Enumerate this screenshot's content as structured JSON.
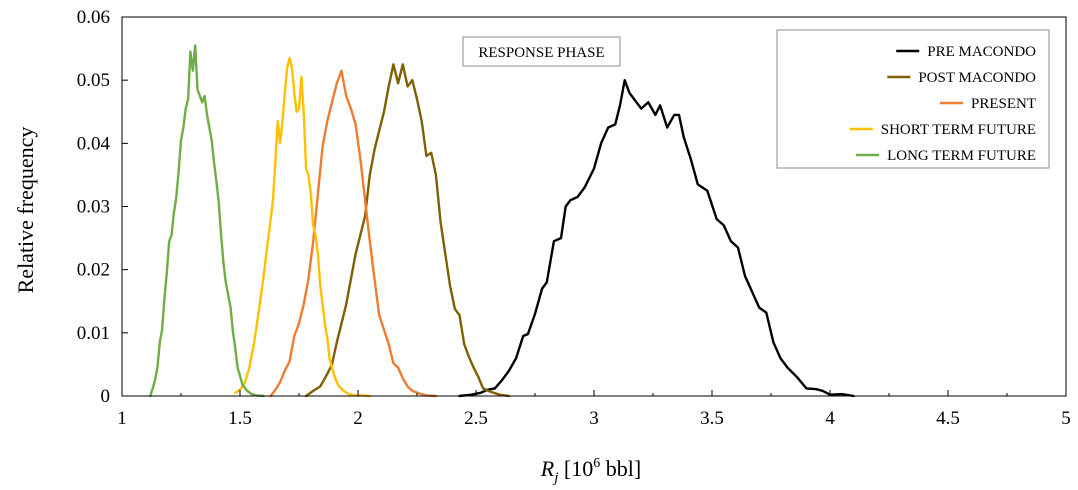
{
  "chart_data": {
    "type": "line",
    "annotation": "RESPONSE PHASE",
    "ylabel": "Relative frequency",
    "xlabel": {
      "base": "R",
      "sub": "j",
      "pre": " [10",
      "sup": "6",
      "post": " bbl]"
    },
    "xlim": [
      1,
      5
    ],
    "ylim": [
      0,
      0.06
    ],
    "xticks": [
      1,
      1.5,
      2,
      2.5,
      3,
      3.5,
      4,
      4.5,
      5
    ],
    "xtick_labels": [
      "1",
      "1.5",
      "2",
      "2.5",
      "3",
      "3.5",
      "4",
      "4.5",
      "5"
    ],
    "yticks": [
      0,
      0.01,
      0.02,
      0.03,
      0.04,
      0.05,
      0.06
    ],
    "ytick_labels": [
      "0",
      "0.01",
      "0.02",
      "0.03",
      "0.04",
      "0.05",
      "0.06"
    ],
    "grid": false,
    "legend_position": "top-right",
    "series": [
      {
        "name": "PRE MACONDO",
        "color": "#000000",
        "x": [
          2.43,
          2.48,
          2.52,
          2.55,
          2.58,
          2.61,
          2.64,
          2.67,
          2.7,
          2.72,
          2.75,
          2.78,
          2.8,
          2.83,
          2.86,
          2.88,
          2.9,
          2.93,
          2.96,
          3.0,
          3.03,
          3.06,
          3.09,
          3.11,
          3.13,
          3.15,
          3.17,
          3.2,
          3.23,
          3.26,
          3.28,
          3.31,
          3.34,
          3.36,
          3.38,
          3.41,
          3.44,
          3.48,
          3.52,
          3.55,
          3.58,
          3.61,
          3.64,
          3.67,
          3.7,
          3.73,
          3.76,
          3.79,
          3.82,
          3.86,
          3.9,
          3.94,
          3.97,
          4.0,
          4.05,
          4.1
        ],
        "y": [
          0.0,
          0.0002,
          0.0005,
          0.001,
          0.0012,
          0.0025,
          0.004,
          0.006,
          0.0095,
          0.0098,
          0.013,
          0.017,
          0.018,
          0.0245,
          0.025,
          0.03,
          0.031,
          0.0315,
          0.033,
          0.036,
          0.04,
          0.0425,
          0.043,
          0.046,
          0.05,
          0.048,
          0.047,
          0.0455,
          0.0465,
          0.0445,
          0.046,
          0.0425,
          0.0445,
          0.0445,
          0.041,
          0.0375,
          0.0335,
          0.0325,
          0.028,
          0.027,
          0.0245,
          0.0235,
          0.019,
          0.0165,
          0.014,
          0.0132,
          0.0085,
          0.006,
          0.0045,
          0.003,
          0.0012,
          0.0011,
          0.0008,
          0.0002,
          0.0003,
          0.0
        ]
      },
      {
        "name": "POST MACONDO",
        "color": "#7f6000",
        "x": [
          1.78,
          1.81,
          1.84,
          1.87,
          1.89,
          1.91,
          1.93,
          1.95,
          1.97,
          1.99,
          2.01,
          2.03,
          2.05,
          2.07,
          2.09,
          2.11,
          2.13,
          2.15,
          2.17,
          2.19,
          2.21,
          2.23,
          2.25,
          2.27,
          2.29,
          2.31,
          2.33,
          2.35,
          2.37,
          2.39,
          2.41,
          2.43,
          2.45,
          2.47,
          2.49,
          2.51,
          2.53,
          2.56,
          2.6,
          2.64
        ],
        "y": [
          0.0,
          0.0008,
          0.0015,
          0.0035,
          0.005,
          0.0085,
          0.0115,
          0.0145,
          0.0185,
          0.0225,
          0.0255,
          0.0285,
          0.035,
          0.039,
          0.042,
          0.045,
          0.049,
          0.0525,
          0.0495,
          0.0525,
          0.049,
          0.05,
          0.047,
          0.0435,
          0.038,
          0.0385,
          0.035,
          0.0275,
          0.0225,
          0.0175,
          0.0138,
          0.0128,
          0.0082,
          0.0062,
          0.0045,
          0.003,
          0.0012,
          0.0007,
          0.0002,
          0.0
        ]
      },
      {
        "name": "PRESENT",
        "color": "#ed7d31",
        "x": [
          1.63,
          1.65,
          1.67,
          1.69,
          1.71,
          1.73,
          1.75,
          1.77,
          1.79,
          1.81,
          1.83,
          1.85,
          1.87,
          1.89,
          1.91,
          1.93,
          1.95,
          1.97,
          1.99,
          2.01,
          2.03,
          2.05,
          2.07,
          2.09,
          2.11,
          2.13,
          2.15,
          2.17,
          2.19,
          2.21,
          2.23,
          2.26,
          2.29,
          2.33
        ],
        "y": [
          0.0,
          0.001,
          0.0022,
          0.004,
          0.0055,
          0.0095,
          0.0115,
          0.0145,
          0.0185,
          0.0245,
          0.032,
          0.0395,
          0.0435,
          0.0465,
          0.0495,
          0.0515,
          0.0475,
          0.0455,
          0.043,
          0.0375,
          0.031,
          0.0245,
          0.0185,
          0.0128,
          0.0105,
          0.0082,
          0.0052,
          0.0045,
          0.0028,
          0.0015,
          0.0008,
          0.0004,
          0.0001,
          0.0
        ]
      },
      {
        "name": "SHORT TERM FUTURE",
        "color": "#ffc000",
        "x": [
          1.48,
          1.5,
          1.52,
          1.54,
          1.56,
          1.58,
          1.6,
          1.62,
          1.64,
          1.66,
          1.67,
          1.68,
          1.69,
          1.7,
          1.71,
          1.72,
          1.73,
          1.74,
          1.75,
          1.76,
          1.77,
          1.78,
          1.79,
          1.8,
          1.81,
          1.82,
          1.83,
          1.84,
          1.85,
          1.86,
          1.87,
          1.88,
          1.89,
          1.9,
          1.91,
          1.92,
          1.94,
          1.96,
          1.99,
          2.02,
          2.05
        ],
        "y": [
          0.0005,
          0.001,
          0.002,
          0.0045,
          0.0085,
          0.0135,
          0.019,
          0.025,
          0.031,
          0.0435,
          0.04,
          0.0435,
          0.048,
          0.052,
          0.0535,
          0.052,
          0.048,
          0.045,
          0.0455,
          0.0505,
          0.045,
          0.036,
          0.035,
          0.032,
          0.027,
          0.0255,
          0.0225,
          0.0175,
          0.0145,
          0.0112,
          0.0092,
          0.0058,
          0.0045,
          0.0032,
          0.0022,
          0.0015,
          0.0008,
          0.0003,
          0.0001,
          0.0001,
          0.0
        ]
      },
      {
        "name": "LONG TERM FUTURE",
        "color": "#70ad47",
        "x": [
          1.12,
          1.13,
          1.14,
          1.15,
          1.16,
          1.17,
          1.18,
          1.19,
          1.2,
          1.21,
          1.22,
          1.23,
          1.24,
          1.25,
          1.26,
          1.27,
          1.28,
          1.29,
          1.3,
          1.31,
          1.32,
          1.33,
          1.34,
          1.35,
          1.36,
          1.37,
          1.38,
          1.39,
          1.4,
          1.41,
          1.42,
          1.43,
          1.44,
          1.45,
          1.46,
          1.47,
          1.48,
          1.49,
          1.5,
          1.51,
          1.53,
          1.55,
          1.57,
          1.6
        ],
        "y": [
          0.0,
          0.0012,
          0.0025,
          0.0045,
          0.0085,
          0.0105,
          0.0155,
          0.0195,
          0.0245,
          0.0255,
          0.029,
          0.0315,
          0.0355,
          0.0405,
          0.0425,
          0.0455,
          0.047,
          0.0545,
          0.0515,
          0.0555,
          0.0485,
          0.0475,
          0.0465,
          0.0475,
          0.0445,
          0.0425,
          0.0405,
          0.037,
          0.034,
          0.0305,
          0.0255,
          0.021,
          0.018,
          0.016,
          0.014,
          0.0102,
          0.0075,
          0.0045,
          0.0032,
          0.0018,
          0.0008,
          0.0003,
          0.0001,
          0.0
        ]
      }
    ]
  }
}
